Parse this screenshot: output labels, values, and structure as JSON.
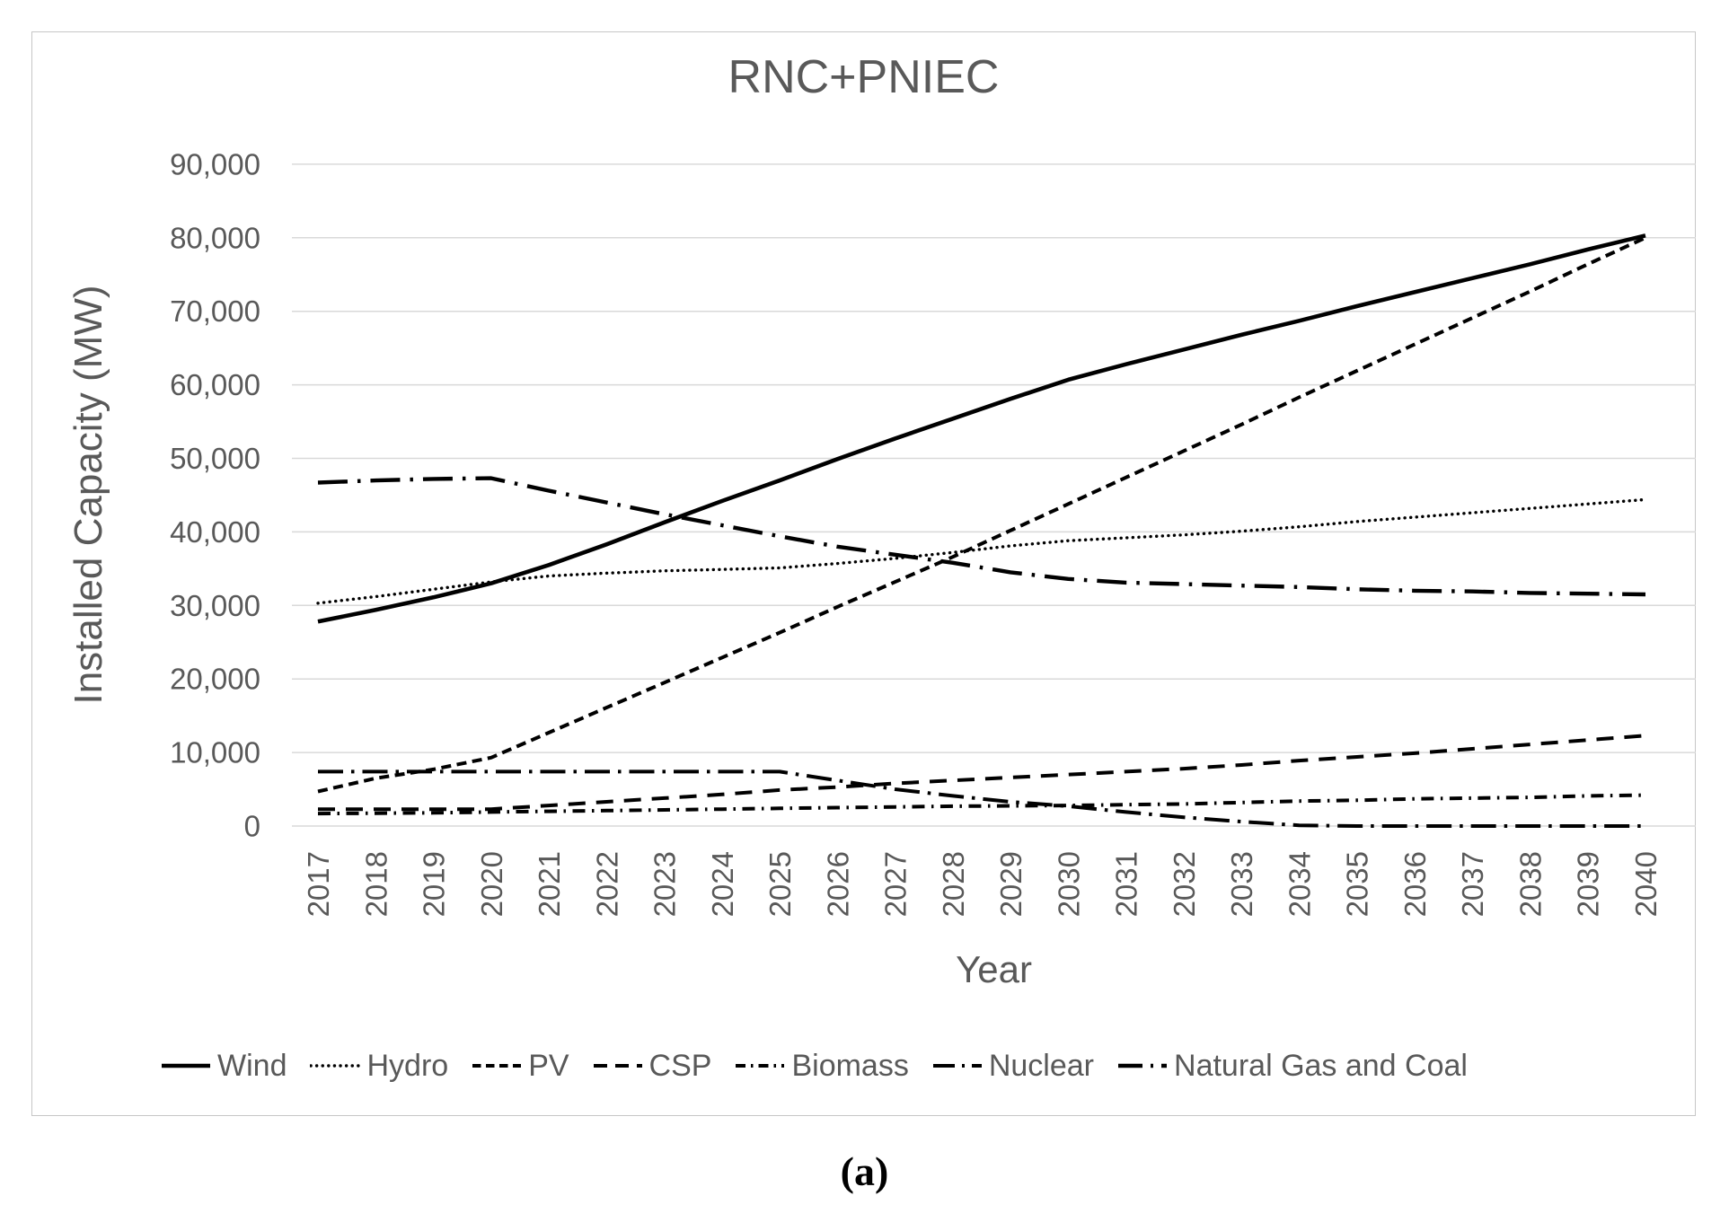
{
  "figure": {
    "title": "RNC+PNIEC",
    "caption": "(a)",
    "x_axis": {
      "title": "Year"
    },
    "y_axis": {
      "title": "Installed Capacity (MW)",
      "tick_labels": [
        "0",
        "10,000",
        "20,000",
        "30,000",
        "40,000",
        "50,000",
        "60,000",
        "70,000",
        "80,000",
        "90,000"
      ]
    },
    "colors": {
      "line": "#000000",
      "text": "#595959",
      "grid": "#d9d9d9",
      "border": "#c6c6c6",
      "background": "#ffffff"
    }
  },
  "chart_data": {
    "type": "line",
    "title": "RNC+PNIEC",
    "xlabel": "Year",
    "ylabel": "Installed Capacity (MW)",
    "x": [
      "2017",
      "2018",
      "2019",
      "2020",
      "2021",
      "2022",
      "2023",
      "2024",
      "2025",
      "2026",
      "2027",
      "2028",
      "2029",
      "2030",
      "2031",
      "2032",
      "2033",
      "2034",
      "2035",
      "2036",
      "2037",
      "2038",
      "2039",
      "2040"
    ],
    "ylim": [
      0,
      90000
    ],
    "ytick_interval": 10000,
    "grid": true,
    "legend_position": "bottom",
    "line_color": "#000000",
    "series": [
      {
        "name": "Wind",
        "line_style": "solid",
        "values": [
          27800,
          29400,
          31100,
          33000,
          35500,
          38300,
          41300,
          44200,
          47000,
          49900,
          52700,
          55400,
          58100,
          60700,
          62800,
          64800,
          66800,
          68700,
          70700,
          72600,
          74500,
          76400,
          78400,
          80300
        ]
      },
      {
        "name": "Hydro",
        "line_style": "dotted",
        "values": [
          30300,
          31200,
          32200,
          33200,
          34000,
          34400,
          34700,
          34900,
          35100,
          35700,
          36400,
          37200,
          38100,
          38800,
          39200,
          39600,
          40100,
          40700,
          41400,
          42000,
          42600,
          43200,
          43800,
          44400
        ]
      },
      {
        "name": "PV",
        "line_style": "dash",
        "values": [
          4700,
          6500,
          7700,
          9300,
          12700,
          16100,
          19500,
          22900,
          26300,
          29800,
          33200,
          36600,
          40200,
          43800,
          47400,
          51000,
          54600,
          58300,
          61900,
          65500,
          69100,
          72700,
          76400,
          80000
        ]
      },
      {
        "name": "CSP",
        "line_style": "long-dash",
        "values": [
          2300,
          2300,
          2300,
          2300,
          2800,
          3300,
          3800,
          4300,
          4900,
          5300,
          5800,
          6200,
          6600,
          7000,
          7400,
          7800,
          8300,
          8900,
          9400,
          9900,
          10500,
          11100,
          11700,
          12300
        ]
      },
      {
        "name": "Biomass",
        "line_style": "dash-dot",
        "values": [
          1700,
          1750,
          1800,
          1900,
          2000,
          2100,
          2200,
          2300,
          2400,
          2500,
          2600,
          2700,
          2750,
          2800,
          2900,
          3000,
          3200,
          3400,
          3500,
          3700,
          3800,
          3900,
          4100,
          4200
        ]
      },
      {
        "name": "Nuclear",
        "line_style": "long-dash-dot",
        "values": [
          7400,
          7400,
          7400,
          7400,
          7400,
          7400,
          7400,
          7400,
          7400,
          6200,
          5000,
          4100,
          3300,
          2700,
          1900,
          1200,
          600,
          100,
          0,
          0,
          0,
          0,
          0,
          0
        ]
      },
      {
        "name": "Natural Gas and Coal",
        "line_style": "long-dash-dot",
        "values": [
          46700,
          47000,
          47200,
          47300,
          45600,
          44000,
          42400,
          40900,
          39400,
          38000,
          36900,
          35800,
          34500,
          33600,
          33100,
          32900,
          32700,
          32500,
          32200,
          32000,
          31900,
          31700,
          31600,
          31500
        ]
      }
    ]
  }
}
